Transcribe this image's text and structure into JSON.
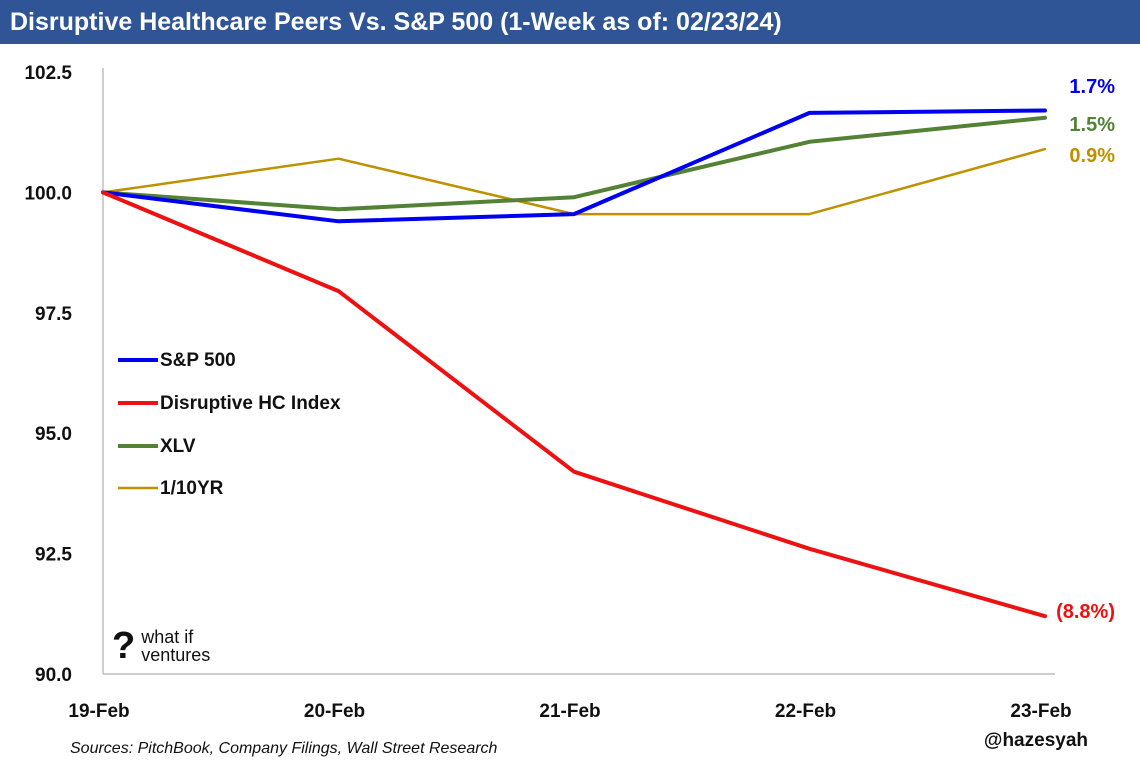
{
  "header": {
    "title": "Disruptive Healthcare Peers Vs. S&P 500 (1-Week as of: 02/23/24)"
  },
  "footer": {
    "sources": "Sources: PitchBook, Company Filings, Wall Street Research",
    "handle": "@hazesyah"
  },
  "logo": {
    "mark": "?",
    "line1": "what if",
    "line2": "ventures"
  },
  "chart_data": {
    "type": "line",
    "title": "Disruptive Healthcare Peers Vs. S&P 500 (1-Week as of: 02/23/24)",
    "categories": [
      "19-Feb",
      "20-Feb",
      "21-Feb",
      "22-Feb",
      "23-Feb"
    ],
    "ylim": [
      90.0,
      102.5
    ],
    "yticks": [
      "90.0",
      "92.5",
      "95.0",
      "97.5",
      "100.0",
      "102.5"
    ],
    "ytick_values": [
      90.0,
      92.5,
      95.0,
      97.5,
      100.0,
      102.5
    ],
    "grid": false,
    "legend_position": "left-center",
    "series": [
      {
        "name": "S&P 500",
        "color": "#0000ee",
        "values": [
          100.0,
          99.4,
          99.55,
          101.65,
          101.7
        ],
        "end_label": "1.7%"
      },
      {
        "name": "Disruptive HC Index",
        "color": "#ee1111",
        "values": [
          100.0,
          97.95,
          94.2,
          92.6,
          91.2
        ],
        "end_label": "(8.8%)"
      },
      {
        "name": "XLV",
        "color": "#538135",
        "values": [
          100.0,
          99.65,
          99.9,
          101.05,
          101.55
        ],
        "end_label": "1.5%"
      },
      {
        "name": "1/10YR",
        "color": "#bf9000",
        "values": [
          100.0,
          100.7,
          99.55,
          99.55,
          100.9
        ],
        "end_label": "0.9%"
      }
    ]
  }
}
